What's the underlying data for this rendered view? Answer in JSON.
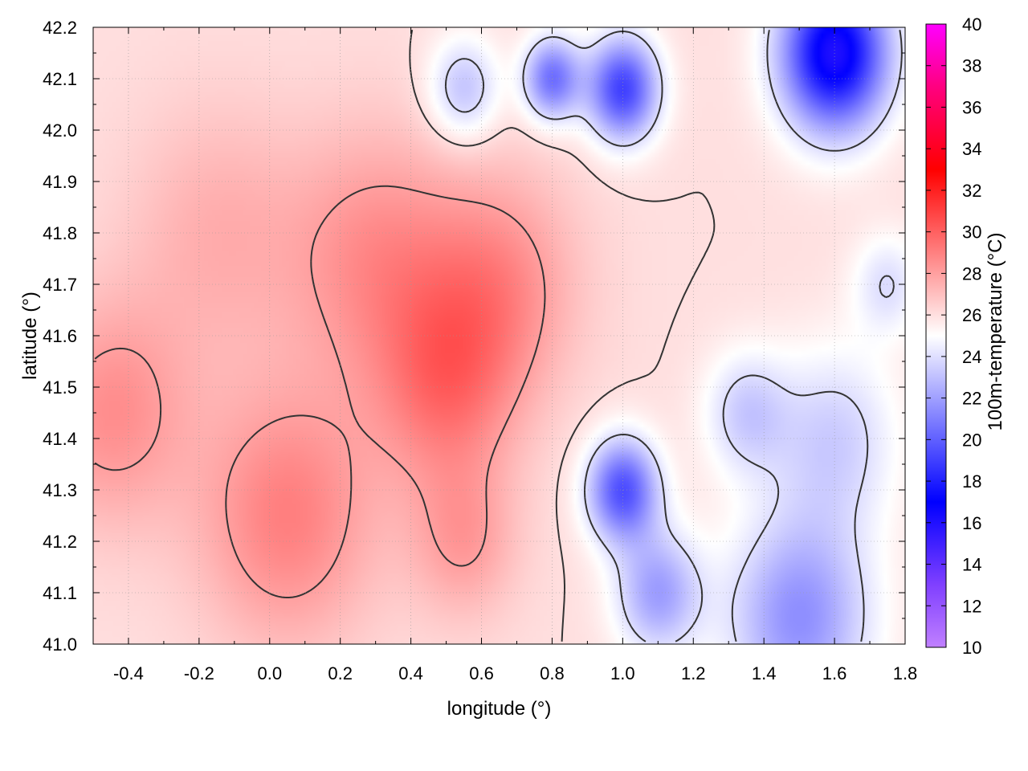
{
  "chart_data": {
    "type": "heatmap",
    "title": "",
    "xlabel": "longitude (°)",
    "ylabel": "latitude (°)",
    "colorbar_label": "100m-temperature (°C)",
    "xlim": [
      -0.5,
      1.8
    ],
    "ylim": [
      41.0,
      42.2
    ],
    "clim": [
      10,
      40
    ],
    "x_ticks": [
      -0.4,
      -0.2,
      0.0,
      0.2,
      0.4,
      0.6,
      0.8,
      1.0,
      1.2,
      1.4,
      1.6,
      1.8
    ],
    "x_tick_labels": [
      "-0.4",
      "-0.2",
      "0.0",
      "0.2",
      "0.4",
      "0.6",
      "0.8",
      "1.0",
      "1.2",
      "1.4",
      "1.6",
      "1.8"
    ],
    "y_ticks": [
      41.0,
      41.1,
      41.2,
      41.3,
      41.4,
      41.5,
      41.6,
      41.7,
      41.8,
      41.9,
      42.0,
      42.1,
      42.2
    ],
    "y_tick_labels": [
      "41.0",
      "41.1",
      "41.2",
      "41.3",
      "41.4",
      "41.5",
      "41.6",
      "41.7",
      "41.8",
      "41.9",
      "42.0",
      "42.1",
      "42.2"
    ],
    "colorbar_ticks": [
      10,
      12,
      14,
      16,
      18,
      20,
      22,
      24,
      26,
      28,
      30,
      32,
      34,
      36,
      38,
      40
    ],
    "colorbar_tick_labels": [
      "10",
      "12",
      "14",
      "16",
      "18",
      "20",
      "22",
      "24",
      "26",
      "28",
      "30",
      "32",
      "34",
      "36",
      "38",
      "40"
    ],
    "colormap": [
      {
        "value": 10,
        "color": "#c080ff"
      },
      {
        "value": 13,
        "color": "#8040ff"
      },
      {
        "value": 17,
        "color": "#0000ff"
      },
      {
        "value": 21,
        "color": "#8080ff"
      },
      {
        "value": 25,
        "color": "#ffffff"
      },
      {
        "value": 29,
        "color": "#ff8080"
      },
      {
        "value": 33,
        "color": "#ff0000"
      },
      {
        "value": 37,
        "color": "#ff0080"
      },
      {
        "value": 40,
        "color": "#ff00ff"
      }
    ],
    "grid": true,
    "contour_color": "#333333",
    "field_features": [
      {
        "lon": -0.45,
        "lat": 41.45,
        "temp": 28.5,
        "spread": 0.22
      },
      {
        "lon": 0.05,
        "lat": 41.25,
        "temp": 29.0,
        "spread": 0.25
      },
      {
        "lon": 0.3,
        "lat": 41.75,
        "temp": 28.5,
        "spread": 0.25
      },
      {
        "lon": 0.5,
        "lat": 41.5,
        "temp": 29.0,
        "spread": 0.2
      },
      {
        "lon": 0.65,
        "lat": 41.7,
        "temp": 28.5,
        "spread": 0.22
      },
      {
        "lon": -0.15,
        "lat": 41.8,
        "temp": 27.5,
        "spread": 0.25
      },
      {
        "lon": 0.55,
        "lat": 41.2,
        "temp": 28.0,
        "spread": 0.15
      },
      {
        "lon": 1.6,
        "lat": 42.15,
        "temp": 16.0,
        "spread": 0.15
      },
      {
        "lon": 1.0,
        "lat": 42.08,
        "temp": 19.0,
        "spread": 0.1
      },
      {
        "lon": 0.8,
        "lat": 42.1,
        "temp": 20.5,
        "spread": 0.08
      },
      {
        "lon": 0.55,
        "lat": 42.08,
        "temp": 23.0,
        "spread": 0.1
      },
      {
        "lon": 1.0,
        "lat": 41.3,
        "temp": 19.5,
        "spread": 0.1
      },
      {
        "lon": 1.5,
        "lat": 41.05,
        "temp": 21.5,
        "spread": 0.2
      },
      {
        "lon": 1.6,
        "lat": 41.4,
        "temp": 23.5,
        "spread": 0.18
      },
      {
        "lon": 1.35,
        "lat": 41.45,
        "temp": 23.5,
        "spread": 0.12
      },
      {
        "lon": 1.1,
        "lat": 41.1,
        "temp": 22.0,
        "spread": 0.12
      },
      {
        "lon": 1.75,
        "lat": 41.7,
        "temp": 24.0,
        "spread": 0.1
      }
    ],
    "field_base_temp": 26.0,
    "contour_levels": [
      24,
      26,
      28
    ]
  }
}
